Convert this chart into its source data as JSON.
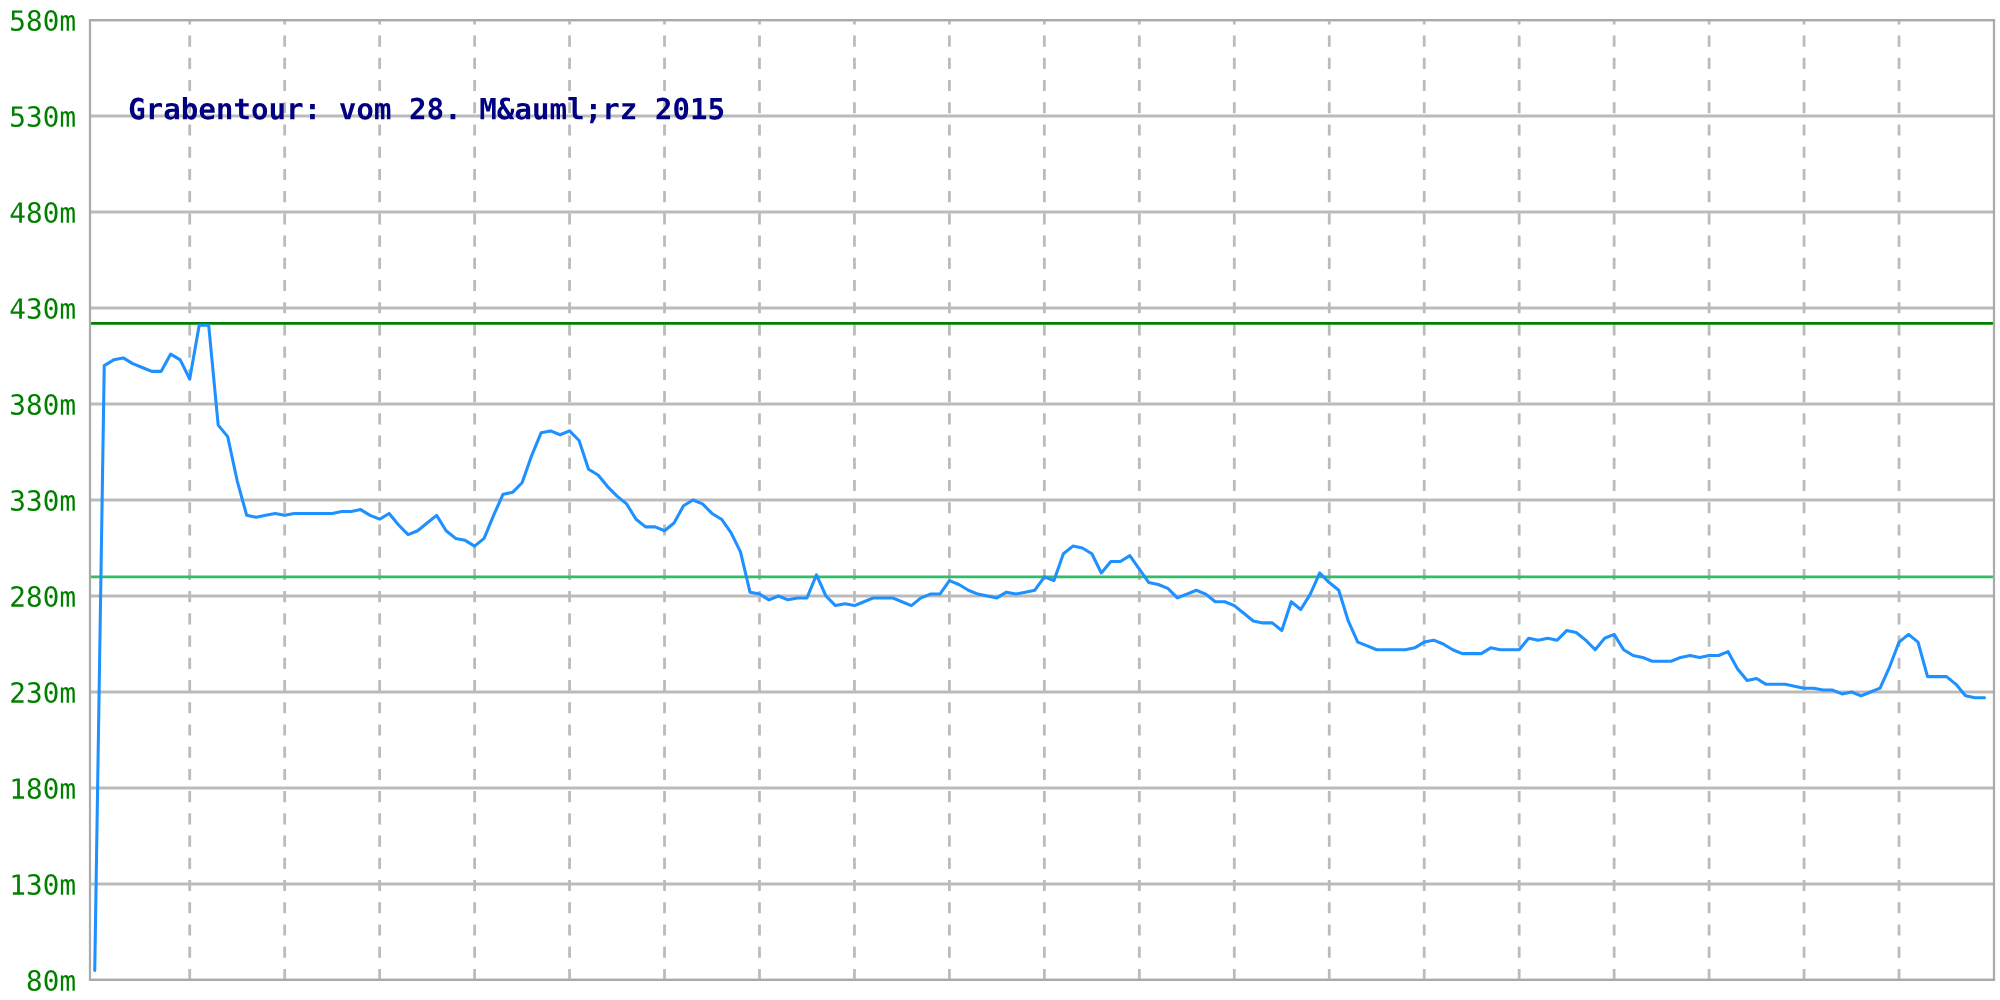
{
  "chart_data": {
    "type": "line",
    "title": "Grabentour: vom 28. M&auml;rz 2015",
    "categories": [
      null,
      null,
      null,
      null,
      null,
      null,
      null,
      null,
      null,
      null,
      null,
      null,
      null,
      null,
      null,
      null,
      null,
      null,
      null,
      null,
      null,
      null,
      null,
      null,
      null,
      null,
      null,
      null,
      null,
      null,
      null,
      null,
      null,
      null,
      null,
      null,
      null,
      null,
      null,
      null,
      null,
      null,
      null,
      null,
      null,
      null,
      null,
      null,
      null,
      null,
      null,
      null,
      null,
      null,
      null,
      null,
      null,
      null,
      null,
      null,
      null,
      null,
      null,
      null,
      null,
      null,
      null,
      null,
      null,
      null,
      null,
      null,
      null,
      null,
      null,
      null,
      null,
      null,
      null,
      null,
      null,
      null,
      null,
      null,
      null,
      null,
      null,
      null,
      null,
      null,
      null,
      null,
      null,
      null,
      null,
      null,
      null,
      null,
      null,
      null,
      null,
      null,
      null,
      null,
      null,
      null,
      null,
      null,
      null,
      null,
      null,
      null,
      null,
      null,
      null,
      null,
      null,
      null,
      null,
      null,
      null,
      null,
      null,
      null,
      null,
      null,
      null,
      null,
      null,
      null,
      null,
      null,
      null,
      null,
      null,
      null,
      null,
      null,
      null,
      null,
      null,
      null,
      null,
      null,
      null,
      null,
      null,
      null,
      null,
      null,
      null,
      null,
      null,
      null,
      null,
      null,
      null,
      null,
      null,
      null,
      null,
      null,
      null,
      null,
      null,
      null,
      null,
      null,
      null,
      null,
      null,
      null,
      null,
      null,
      null,
      null,
      null,
      null,
      null,
      null,
      null,
      null,
      null,
      null,
      null,
      null,
      null,
      null,
      null,
      null,
      null,
      null,
      null,
      null,
      null,
      null,
      null,
      null,
      null,
      null
    ],
    "series": [
      {
        "color": "#1e90ff",
        "values": [
          85,
          400,
          403,
          404,
          401,
          399,
          397,
          397,
          406,
          403,
          393,
          421,
          421,
          369,
          363,
          340,
          322,
          321,
          322,
          323,
          322,
          323,
          323,
          323,
          323,
          323,
          324,
          324,
          325,
          322,
          320,
          323,
          317,
          312,
          314,
          318,
          322,
          314,
          310,
          309,
          306,
          310,
          322,
          333,
          334,
          339,
          353,
          365,
          366,
          364,
          366,
          361,
          346,
          343,
          337,
          332,
          328,
          320,
          316,
          316,
          314,
          318,
          327,
          330,
          328,
          323,
          320,
          313,
          303,
          282,
          281,
          278,
          280,
          278,
          279,
          279,
          291,
          280,
          275,
          276,
          275,
          277,
          279,
          279,
          279,
          277,
          275,
          279,
          281,
          281,
          288,
          286,
          283,
          281,
          280,
          279,
          282,
          281,
          282,
          283,
          290,
          288,
          302,
          306,
          305,
          302,
          292,
          298,
          298,
          301,
          294,
          287,
          286,
          284,
          279,
          281,
          283,
          281,
          277,
          277,
          275,
          271,
          267,
          266,
          266,
          262,
          277,
          273,
          281,
          292,
          287,
          283,
          267,
          256,
          254,
          252,
          252,
          252,
          252,
          253,
          256,
          257,
          255,
          252,
          250,
          250,
          250,
          253,
          252,
          252,
          252,
          258,
          257,
          258,
          257,
          262,
          261,
          257,
          252,
          258,
          260,
          252,
          249,
          248,
          246,
          246,
          246,
          248,
          249,
          248,
          249,
          249,
          251,
          242,
          236,
          237,
          234,
          234,
          234,
          233,
          232,
          232,
          231,
          231,
          229,
          230,
          228,
          230,
          232,
          243,
          256,
          260,
          256,
          238,
          238,
          238,
          234,
          228,
          227,
          227
        ]
      }
    ],
    "ylim": [
      80,
      580
    ],
    "yticks": [
      {
        "value": 80,
        "label": "80m"
      },
      {
        "value": 130,
        "label": "130m"
      },
      {
        "value": 180,
        "label": "180m"
      },
      {
        "value": 230,
        "label": "230m"
      },
      {
        "value": 280,
        "label": "280m"
      },
      {
        "value": 330,
        "label": "330m"
      },
      {
        "value": 380,
        "label": "380m"
      },
      {
        "value": 430,
        "label": "430m"
      },
      {
        "value": 480,
        "label": "480m"
      },
      {
        "value": 530,
        "label": "530m"
      },
      {
        "value": 580,
        "label": "580m"
      }
    ],
    "ref_lines": [
      {
        "axis": "y",
        "value": 422,
        "color": "#008000"
      },
      {
        "axis": "y",
        "value": 290,
        "color": "#33bb66"
      }
    ],
    "grid": true,
    "legend": false,
    "tick_labels": "y",
    "marker": "none",
    "line_style": "solid"
  }
}
